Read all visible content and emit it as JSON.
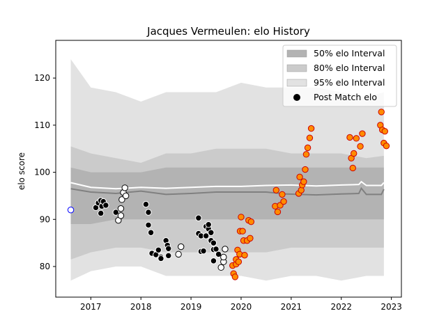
{
  "chart_data": {
    "type": "scatter",
    "title": "Jacques Vermeulen: elo History",
    "xlabel": "",
    "ylabel": "elo score",
    "xlim": [
      2016.3,
      2023.2
    ],
    "ylim": [
      73.5,
      128
    ],
    "x_ticks": [
      2017,
      2018,
      2019,
      2020,
      2021,
      2022,
      2023
    ],
    "y_ticks": [
      80,
      90,
      100,
      110,
      120
    ],
    "grid": false,
    "legend_position": "top-right",
    "legend": [
      {
        "label": "50% elo Interval",
        "kind": "band",
        "color": "#b3b3b3"
      },
      {
        "label": "80% elo Interval",
        "kind": "band",
        "color": "#cbcbcb"
      },
      {
        "label": "95% elo Interval",
        "kind": "band",
        "color": "#e2e2e2"
      },
      {
        "label": "Post Match elo",
        "kind": "marker",
        "color": "#000000"
      }
    ],
    "bands": {
      "x": [
        2016.6,
        2017.0,
        2017.5,
        2018.0,
        2018.5,
        2019.0,
        2019.5,
        2020.0,
        2020.5,
        2021.0,
        2021.5,
        2022.0,
        2022.5,
        2022.85
      ],
      "p95": {
        "upper": [
          124,
          118,
          117,
          115,
          117,
          117,
          117,
          119,
          118,
          118,
          118,
          117,
          116,
          117
        ],
        "lower": [
          77,
          79,
          80,
          80,
          78,
          78,
          78,
          78,
          77,
          78,
          78,
          77,
          78,
          78
        ]
      },
      "p80": {
        "upper": [
          105.5,
          104,
          103,
          102,
          104,
          104,
          105,
          105,
          105,
          104,
          104,
          104,
          103,
          103.5
        ],
        "lower": [
          81.5,
          83,
          84,
          84,
          83,
          83,
          83,
          83,
          83,
          84,
          84,
          84,
          84,
          84
        ]
      },
      "p50": {
        "upper": [
          101,
          100,
          100,
          100,
          101,
          101,
          101,
          101,
          101,
          101,
          101,
          101,
          101,
          101
        ],
        "lower": [
          89,
          89,
          90,
          90,
          90,
          90,
          90,
          90,
          90,
          90,
          90,
          90,
          90,
          90
        ]
      }
    },
    "median_line": {
      "color": "#808080",
      "x": [
        2016.6,
        2017.0,
        2017.5,
        2018.0,
        2018.5,
        2019.0,
        2019.5,
        2020.0,
        2020.5,
        2020.9,
        2021.5,
        2022.0,
        2022.35,
        2022.4,
        2022.5,
        2022.8,
        2022.85
      ],
      "y": [
        96.5,
        95.8,
        95.5,
        96.0,
        95.3,
        95.5,
        95.8,
        95.8,
        95.8,
        95.4,
        95.2,
        95.4,
        95.5,
        96.6,
        95.3,
        95.3,
        96.4
      ]
    },
    "mean_line": {
      "color": "#ffffff",
      "x": [
        2016.6,
        2017.0,
        2017.5,
        2018.0,
        2018.5,
        2019.0,
        2019.5,
        2020.0,
        2020.5,
        2021.0,
        2021.5,
        2022.0,
        2022.35,
        2022.4,
        2022.5,
        2022.8,
        2022.85
      ],
      "y": [
        97.8,
        96.8,
        96.5,
        96.8,
        96.6,
        96.8,
        97.0,
        97.0,
        97.2,
        97.3,
        97.1,
        97.3,
        97.4,
        98.0,
        97.2,
        97.2,
        97.8
      ]
    },
    "series": [
      {
        "name": "Post Match elo",
        "fill": "#0000ff",
        "stroke": "#0000ff",
        "marker_fill": "#ffffff",
        "points": [
          [
            2016.6,
            92.0
          ]
        ]
      },
      {
        "fill": "#000000",
        "stroke": "#ffffff",
        "points": [
          [
            2017.1,
            92.5
          ],
          [
            2017.15,
            93.5
          ],
          [
            2017.2,
            94.0
          ],
          [
            2017.22,
            92.8
          ],
          [
            2017.2,
            91.3
          ],
          [
            2017.25,
            93.8
          ],
          [
            2017.3,
            93.0
          ],
          [
            2017.5,
            91.5
          ],
          [
            2018.1,
            93.2
          ],
          [
            2018.15,
            91.5
          ],
          [
            2018.15,
            88.8
          ],
          [
            2018.2,
            87.2
          ],
          [
            2018.22,
            82.8
          ],
          [
            2018.3,
            82.5
          ],
          [
            2018.35,
            83.5
          ],
          [
            2018.4,
            82.0
          ],
          [
            2018.4,
            81.7
          ],
          [
            2018.5,
            85.5
          ],
          [
            2018.53,
            84.5
          ],
          [
            2018.55,
            83.8
          ],
          [
            2018.55,
            82.3
          ],
          [
            2019.15,
            90.3
          ],
          [
            2019.15,
            87.0
          ],
          [
            2019.2,
            86.5
          ],
          [
            2019.2,
            83.2
          ],
          [
            2019.25,
            83.3
          ],
          [
            2019.3,
            86.5
          ],
          [
            2019.3,
            88.5
          ],
          [
            2019.35,
            88.0
          ],
          [
            2019.35,
            88.9
          ],
          [
            2019.4,
            87.2
          ],
          [
            2019.4,
            85.5
          ],
          [
            2019.45,
            85.0
          ],
          [
            2019.45,
            83.6
          ],
          [
            2019.5,
            83.7
          ],
          [
            2019.45,
            81.2
          ],
          [
            2019.55,
            82.6
          ]
        ]
      },
      {
        "fill": "#ffffff",
        "stroke": "#000000",
        "points": [
          [
            2017.55,
            89.8
          ],
          [
            2017.6,
            90.8
          ],
          [
            2017.6,
            92.3
          ],
          [
            2017.62,
            94.2
          ],
          [
            2017.65,
            95.7
          ],
          [
            2017.68,
            96.7
          ],
          [
            2017.7,
            95.0
          ],
          [
            2018.75,
            82.6
          ],
          [
            2018.8,
            84.2
          ],
          [
            2019.6,
            79.8
          ],
          [
            2019.65,
            81.0
          ],
          [
            2019.65,
            82.0
          ],
          [
            2019.68,
            83.7
          ]
        ]
      },
      {
        "fill": "#ff8c00",
        "stroke": "#cc0000",
        "points": [
          [
            2019.83,
            80.2
          ],
          [
            2019.85,
            78.5
          ],
          [
            2019.88,
            77.8
          ],
          [
            2019.9,
            80.5
          ],
          [
            2019.9,
            81.5
          ],
          [
            2019.93,
            83.5
          ],
          [
            2019.95,
            81.0
          ],
          [
            2019.97,
            82.6
          ],
          [
            2019.98,
            87.5
          ],
          [
            2020.0,
            90.5
          ],
          [
            2020.03,
            87.5
          ],
          [
            2020.05,
            85.5
          ],
          [
            2020.07,
            82.4
          ],
          [
            2020.12,
            85.5
          ],
          [
            2020.15,
            89.8
          ],
          [
            2020.18,
            86.0
          ],
          [
            2020.2,
            89.5
          ],
          [
            2020.68,
            92.8
          ],
          [
            2020.7,
            96.2
          ],
          [
            2020.73,
            91.6
          ],
          [
            2020.78,
            93.0
          ],
          [
            2020.82,
            95.3
          ],
          [
            2020.85,
            93.8
          ],
          [
            2021.15,
            95.5
          ],
          [
            2021.17,
            99.0
          ],
          [
            2021.2,
            96.2
          ],
          [
            2021.22,
            97.3
          ],
          [
            2021.25,
            98.0
          ],
          [
            2021.28,
            100.6
          ],
          [
            2021.3,
            103.8
          ],
          [
            2021.33,
            105.2
          ],
          [
            2021.37,
            107.3
          ],
          [
            2021.4,
            109.3
          ],
          [
            2022.17,
            107.4
          ],
          [
            2022.2,
            103.0
          ],
          [
            2022.23,
            100.9
          ],
          [
            2022.25,
            104.0
          ],
          [
            2022.3,
            107.2
          ],
          [
            2022.38,
            105.5
          ],
          [
            2022.42,
            108.2
          ],
          [
            2022.78,
            110.0
          ],
          [
            2022.8,
            112.8
          ],
          [
            2022.82,
            109.0
          ],
          [
            2022.85,
            106.2
          ],
          [
            2022.87,
            108.7
          ],
          [
            2022.9,
            105.6
          ]
        ]
      }
    ]
  }
}
